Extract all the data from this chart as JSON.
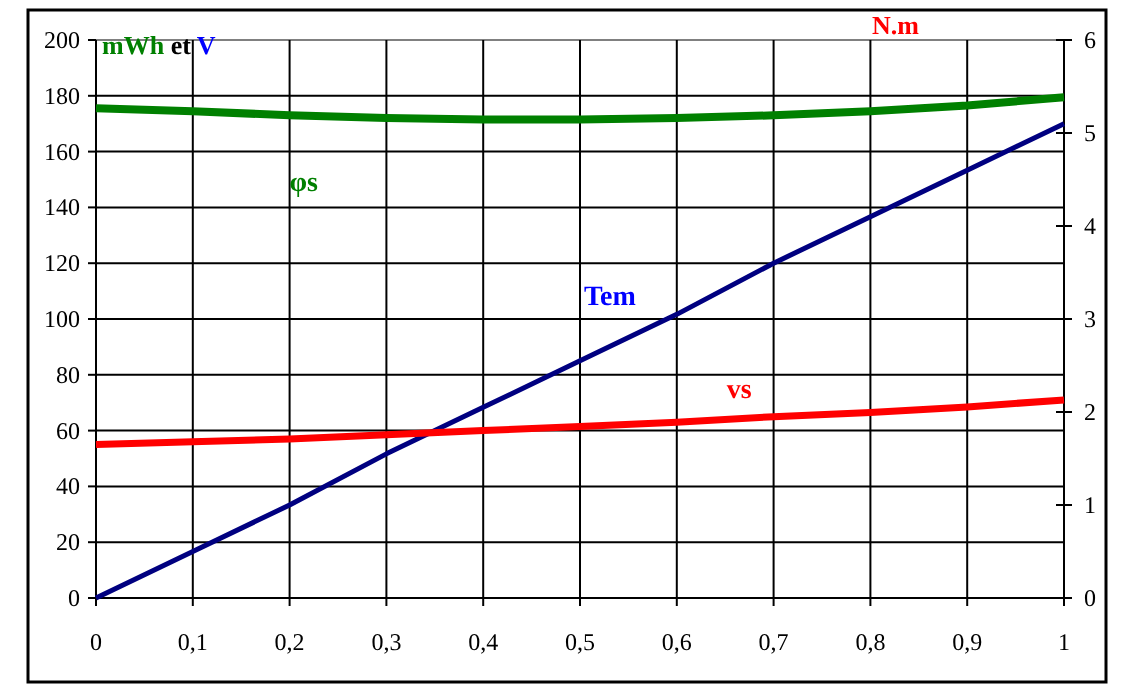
{
  "chart_data": {
    "type": "line",
    "ylabel": "mWh et V",
    "y2label": "N.m",
    "x": [
      0,
      0.1,
      0.2,
      0.3,
      0.4,
      0.5,
      0.6,
      0.7,
      0.8,
      0.9,
      1
    ],
    "series": [
      {
        "name": "φs",
        "color": "#008000",
        "values": [
          175.5,
          174.5,
          173,
          172,
          171.5,
          171.5,
          172,
          173,
          174.5,
          176.5,
          179.5
        ]
      },
      {
        "name": "Tem",
        "color": "#000080",
        "axis": "y2",
        "values": [
          0,
          0.5,
          1,
          1.55,
          2.05,
          2.55,
          3.05,
          3.6,
          4.1,
          4.6,
          5.1
        ]
      },
      {
        "name": "vs",
        "color": "#ff0000",
        "values": [
          55,
          56,
          57,
          58.5,
          60,
          61.5,
          63,
          65,
          66.5,
          68.5,
          71
        ]
      }
    ],
    "xlim": [
      0,
      1
    ],
    "xticks": [
      {
        "value": 0,
        "label": "0"
      },
      {
        "value": 0.1,
        "label": "0,1"
      },
      {
        "value": 0.2,
        "label": "0,2"
      },
      {
        "value": 0.3,
        "label": "0,3"
      },
      {
        "value": 0.4,
        "label": "0,4"
      },
      {
        "value": 0.5,
        "label": "0,5"
      },
      {
        "value": 0.6,
        "label": "0,6"
      },
      {
        "value": 0.7,
        "label": "0,7"
      },
      {
        "value": 0.8,
        "label": "0,8"
      },
      {
        "value": 0.9,
        "label": "0,9"
      },
      {
        "value": 1,
        "label": "1"
      }
    ],
    "ylim": [
      0,
      200
    ],
    "yticks": [
      0,
      20,
      40,
      60,
      80,
      100,
      120,
      140,
      160,
      180,
      200
    ],
    "y2lim": [
      0,
      6
    ],
    "y2ticks": [
      0,
      1,
      2,
      3,
      4,
      5,
      6
    ],
    "grid": true,
    "marker": "none",
    "line_style": "solid"
  }
}
